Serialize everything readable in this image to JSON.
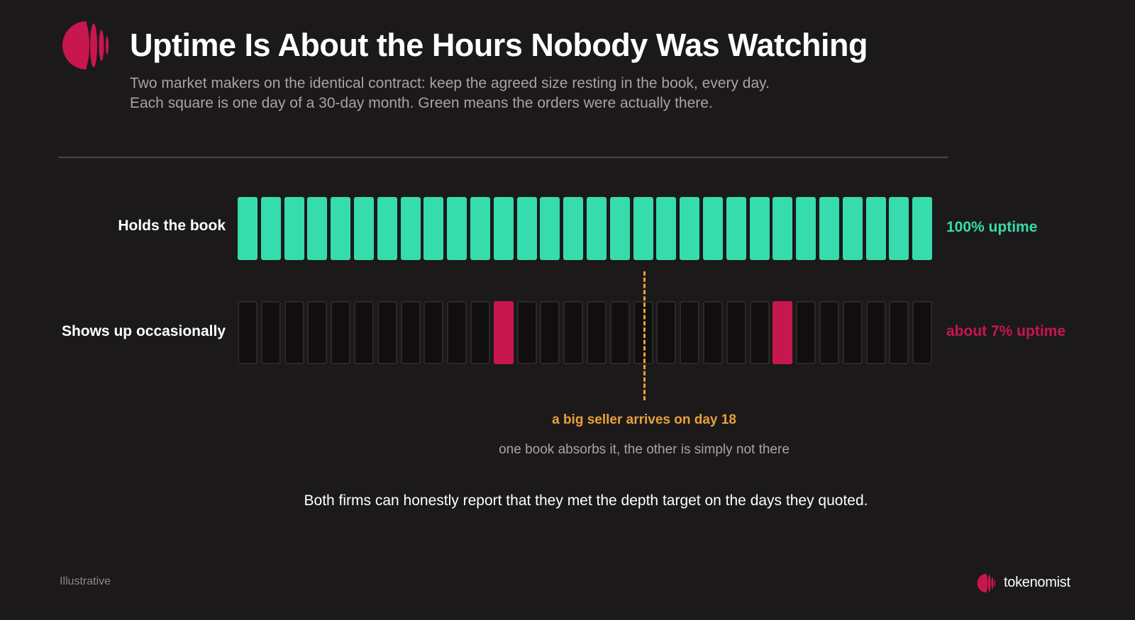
{
  "header": {
    "title": "Uptime Is About the Hours Nobody Was Watching",
    "subtitle_line1": "Two market makers on the identical contract: keep the agreed size resting in the book, every day.",
    "subtitle_line2": "Each square is one day of a 30-day month. Green means the orders were actually there."
  },
  "colors": {
    "background": "#1c191a",
    "present": "#36dcab",
    "absent_fill": "#100e0f",
    "absent_border": "#2c2829",
    "occasional": "#c8164f",
    "marker": "#e8a23a"
  },
  "chart_data": {
    "type": "heatmap",
    "days": 30,
    "series": [
      {
        "name": "Holds the book",
        "present_days": [
          1,
          2,
          3,
          4,
          5,
          6,
          7,
          8,
          9,
          10,
          11,
          12,
          13,
          14,
          15,
          16,
          17,
          18,
          19,
          20,
          21,
          22,
          23,
          24,
          25,
          26,
          27,
          28,
          29,
          30
        ],
        "stat": "100% uptime",
        "color": "#36dcab"
      },
      {
        "name": "Shows up occasionally",
        "present_days": [
          12,
          24
        ],
        "stat": "about 7% uptime",
        "color": "#c8164f"
      }
    ],
    "annotation": {
      "day": 18,
      "label": "a big seller arrives on day 18",
      "sublabel": "one book absorbs it, the other is simply not there"
    }
  },
  "takeaway": "Both firms can honestly report that they met the depth target on the days they quoted.",
  "footer": {
    "note": "Illustrative",
    "brand": "tokenomist"
  }
}
